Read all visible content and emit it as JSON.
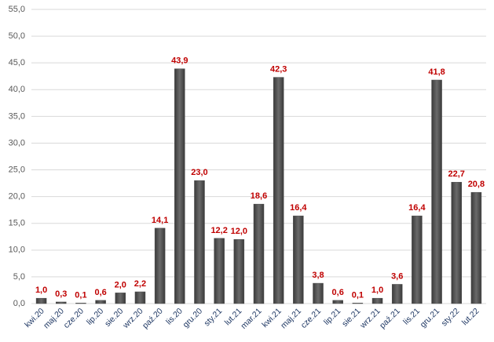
{
  "chart_data": {
    "type": "bar",
    "categories": [
      "kwi.20",
      "maj.20",
      "cze.20",
      "lip.20",
      "sie.20",
      "wrz.20",
      "paź.20",
      "lis.20",
      "gru.20",
      "sty.21",
      "lut.21",
      "mar.21",
      "kwi.21",
      "maj.21",
      "cze.21",
      "lip.21",
      "sie.21",
      "wrz.21",
      "paź.21",
      "lis.21",
      "gru.21",
      "sty.22",
      "lut.22"
    ],
    "values": [
      1.0,
      0.3,
      0.1,
      0.6,
      2.0,
      2.2,
      14.1,
      43.9,
      23.0,
      12.2,
      12.0,
      18.6,
      42.3,
      16.4,
      3.8,
      0.6,
      0.1,
      1.0,
      3.6,
      16.4,
      41.8,
      22.7,
      20.8
    ],
    "value_labels": [
      "1,0",
      "0,3",
      "0,1",
      "0,6",
      "2,0",
      "2,2",
      "14,1",
      "43,9",
      "23,0",
      "12,2",
      "12,0",
      "18,6",
      "42,3",
      "16,4",
      "3,8",
      "0,6",
      "0,1",
      "1,0",
      "3,6",
      "16,4",
      "41,8",
      "22,7",
      "20,8"
    ],
    "color": "#505050",
    "ylim": [
      0,
      55
    ],
    "yticks": [
      {
        "value": 0,
        "label": "0,0"
      },
      {
        "value": 5,
        "label": "5,0"
      },
      {
        "value": 10,
        "label": "10,0"
      },
      {
        "value": 15,
        "label": "15,0"
      },
      {
        "value": 20,
        "label": "20,0"
      },
      {
        "value": 25,
        "label": "25,0"
      },
      {
        "value": 30,
        "label": "30,0"
      },
      {
        "value": 35,
        "label": "35,0"
      },
      {
        "value": 40,
        "label": "40,0"
      },
      {
        "value": 45,
        "label": "45,0"
      },
      {
        "value": 50,
        "label": "50,0"
      },
      {
        "value": 55,
        "label": "55,0"
      }
    ],
    "grid": true
  }
}
